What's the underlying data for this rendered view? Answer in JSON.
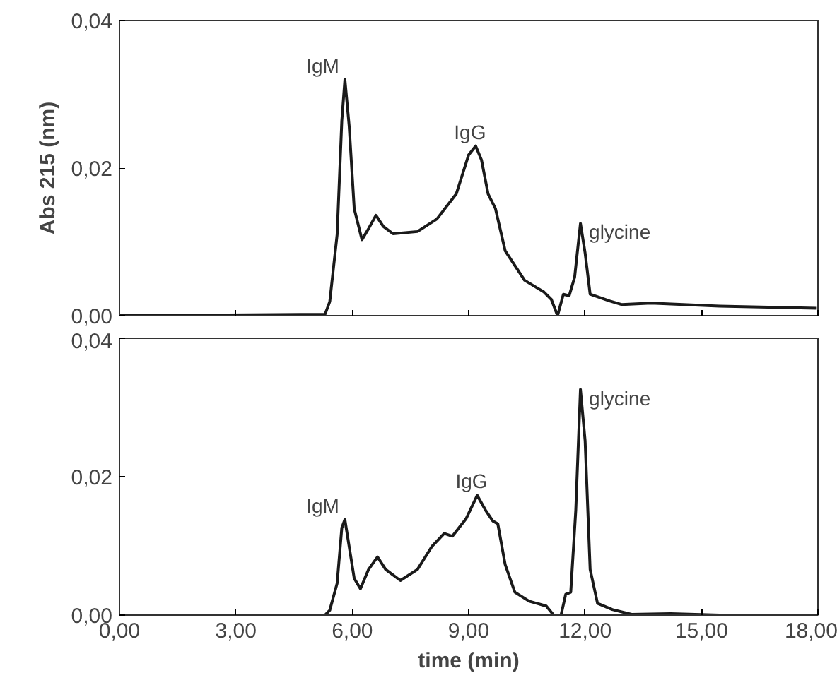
{
  "chart_data": [
    {
      "type": "line",
      "ylabel": "Abs 215 (nm)",
      "xlim": [
        0,
        18
      ],
      "ylim": [
        0,
        0.04
      ],
      "xticks": [
        {
          "value": 0,
          "label": null
        },
        {
          "value": 3,
          "label": null
        },
        {
          "value": 6,
          "label": null
        },
        {
          "value": 9,
          "label": null
        },
        {
          "value": 12,
          "label": null
        },
        {
          "value": 15,
          "label": null
        },
        {
          "value": 18,
          "label": null
        }
      ],
      "yticks": [
        {
          "value": 0,
          "label": "0,00"
        },
        {
          "value": 0.02,
          "label": "0,02"
        },
        {
          "value": 0.04,
          "label": "0,04"
        }
      ],
      "tick_labels": "y",
      "grid": false,
      "series": [
        {
          "color": "#1a1a1a",
          "x": [
            0,
            5.3,
            5.42,
            5.61,
            5.73,
            5.81,
            5.92,
            6.05,
            6.25,
            6.42,
            6.61,
            6.8,
            7.05,
            7.68,
            8.18,
            8.68,
            9.0,
            9.18,
            9.33,
            9.5,
            9.69,
            9.94,
            10.44,
            10.94,
            11.13,
            11.29,
            11.44,
            11.59,
            11.73,
            11.88,
            12.0,
            12.13,
            12.63,
            12.95,
            13.7,
            15.46,
            17.97
          ],
          "values": [
            0,
            0.0002,
            0.0019,
            0.011,
            0.0264,
            0.032,
            0.0257,
            0.0145,
            0.0103,
            0.0118,
            0.0136,
            0.0121,
            0.0111,
            0.0114,
            0.0131,
            0.0165,
            0.0218,
            0.023,
            0.0211,
            0.0165,
            0.0145,
            0.0088,
            0.0048,
            0.0032,
            0.0022,
            0,
            0.0029,
            0.0027,
            0.0052,
            0.0125,
            0.0085,
            0.0029,
            0.002,
            0.0015,
            0.0017,
            0.0013,
            0.001
          ]
        }
      ],
      "annotations": [
        {
          "text": "IgM",
          "x": 5.81,
          "y": 0.032
        },
        {
          "text": "IgG",
          "x": 9.18,
          "y": 0.023
        },
        {
          "text": "glycine",
          "x": 11.88,
          "y": 0.0125
        }
      ]
    },
    {
      "type": "line",
      "xlabel": "time (min)",
      "xlim": [
        0,
        18
      ],
      "ylim": [
        0,
        0.04
      ],
      "xticks": [
        {
          "value": 0,
          "label": "0,00"
        },
        {
          "value": 3,
          "label": "3,00"
        },
        {
          "value": 6,
          "label": "6,00"
        },
        {
          "value": 9,
          "label": "9,00"
        },
        {
          "value": 12,
          "label": "12,00"
        },
        {
          "value": 15,
          "label": "15,00"
        },
        {
          "value": 18,
          "label": "18,00"
        }
      ],
      "yticks": [
        {
          "value": 0,
          "label": "0,00"
        },
        {
          "value": 0.02,
          "label": "0,02"
        },
        {
          "value": 0.04,
          "label": "0,04"
        }
      ],
      "grid": false,
      "series": [
        {
          "color": "#1a1a1a",
          "x": [
            0,
            5.3,
            5.42,
            5.61,
            5.73,
            5.81,
            5.92,
            6.05,
            6.21,
            6.42,
            6.65,
            6.86,
            7.24,
            7.68,
            8.05,
            8.37,
            8.58,
            8.93,
            9.22,
            9.43,
            9.62,
            9.75,
            9.94,
            10.19,
            10.56,
            11.0,
            11.19,
            11.38,
            11.5,
            11.63,
            11.76,
            11.88,
            12.0,
            12.13,
            12.32,
            12.7,
            13.2,
            14.2,
            15.46,
            18.0
          ],
          "values": [
            0,
            0,
            0.0007,
            0.0046,
            0.0126,
            0.0138,
            0.0099,
            0.0053,
            0.0038,
            0.0066,
            0.0084,
            0.0066,
            0.005,
            0.0066,
            0.0099,
            0.0118,
            0.0114,
            0.0139,
            0.0173,
            0.0152,
            0.0136,
            0.0132,
            0.0073,
            0.0033,
            0.002,
            0.0013,
            0,
            0,
            0.003,
            0.0033,
            0.0152,
            0.0326,
            0.0252,
            0.0066,
            0.0017,
            0.0008,
            0.0001,
            0.0002,
            0,
            0
          ]
        }
      ],
      "annotations": [
        {
          "text": "IgM",
          "x": 5.81,
          "y": 0.0138
        },
        {
          "text": "IgG",
          "x": 9.22,
          "y": 0.0173
        },
        {
          "text": "glycine",
          "x": 11.88,
          "y": 0.0326
        }
      ]
    }
  ]
}
